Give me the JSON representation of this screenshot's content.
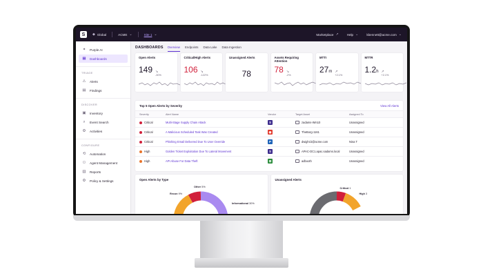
{
  "topbar": {
    "logo": "S",
    "scope": "Global",
    "account": "ACME",
    "site": "Site 1",
    "marketplace": "Marketplace",
    "help": "Help",
    "user": "kbennett@acme.com"
  },
  "sidebar": {
    "top_items": [
      {
        "label": "Purple AI",
        "icon": "sparkle-icon"
      },
      {
        "label": "Dashboards",
        "icon": "dashboard-icon",
        "active": true
      }
    ],
    "sections": [
      {
        "title": "TRIAGE",
        "items": [
          "Alerts",
          "Findings"
        ]
      },
      {
        "title": "DISCOVER",
        "items": [
          "Inventory",
          "Event Search",
          "Activities"
        ]
      },
      {
        "title": "CONFIGURE",
        "items": [
          "Automation",
          "Agent Management",
          "Reports",
          "Policy & Settings"
        ]
      }
    ]
  },
  "page": {
    "title": "DASHBOARDS",
    "tabs": [
      "Overview",
      "Endpoints",
      "Data Lake",
      "Data Ingestion"
    ],
    "active_tab": 0
  },
  "kpis": [
    {
      "label": "Open Alerts",
      "value": "149",
      "unit": "",
      "delta": "-30%",
      "arrow": "↘",
      "color": "normal"
    },
    {
      "label": "Critical/High Alerts",
      "value": "106",
      "unit": "",
      "delta": "-122%",
      "arrow": "↘",
      "color": "red"
    },
    {
      "label": "Unassigned Alerts",
      "value": "78",
      "unit": "",
      "delta": "",
      "arrow": "",
      "color": "normal"
    },
    {
      "label": "Assets Requiring Attention",
      "value": "78",
      "unit": "",
      "delta": "-2%",
      "arrow": "↘",
      "color": "red"
    },
    {
      "label": "MTTI",
      "value": "27",
      "unit": "m",
      "delta": "+2.1%",
      "arrow": "↗",
      "color": "normal"
    },
    {
      "label": "MTTR",
      "value": "1.2",
      "unit": "h",
      "delta": "+2.1%",
      "arrow": "↗",
      "color": "normal"
    }
  ],
  "alerts_table": {
    "title": "Top 5 Open Alerts by Severity",
    "view_all": "View All Alerts",
    "columns": [
      "Severity",
      "Alert Name",
      "Vendor",
      "Target Asset",
      "Assigned To"
    ],
    "rows": [
      {
        "severity": "Critical",
        "name": "Multi-Stage Supply Chain Attack",
        "vendor": "S",
        "vendor_color": "#3b2a8c",
        "asset": "zadams-Win10",
        "assigned": "Unassigned"
      },
      {
        "severity": "Critical",
        "name": "A Malicious Scheduled Task Was Created",
        "vendor": "◉",
        "vendor_color": "#e23b2e",
        "asset": "TheBorg-1161",
        "assigned": "Unassigned"
      },
      {
        "severity": "Critical",
        "name": "Phishing Email Delivered Due To User Override",
        "vendor": "P",
        "vendor_color": "#1e63b8",
        "asset": "dwight.b@acme.com",
        "assigned": "Nina T"
      },
      {
        "severity": "High",
        "name": "Golden Ticket Exploitation Due To Lateral Movement",
        "vendor": "S",
        "vendor_color": "#3b2a8c",
        "asset": "APAC-DC1.apac.sadams.local",
        "assigned": "Unassigned"
      },
      {
        "severity": "High",
        "name": "API Abuse For Data Theft",
        "vendor": "⊞",
        "vendor_color": "#2a8c3b",
        "asset": "adbooth",
        "assigned": "Unassigned"
      }
    ]
  },
  "bottom_cards": [
    {
      "title": "Open Alerts by Type",
      "labels": [
        {
          "name": "Other",
          "pct": "5%"
        },
        {
          "name": "Recon",
          "pct": "9%"
        },
        {
          "name": "Informational",
          "pct": "30%"
        }
      ]
    },
    {
      "title": "Unassigned Alerts",
      "labels": [
        {
          "name": "Critical",
          "pct": "1"
        },
        {
          "name": "High",
          "pct": "3"
        }
      ]
    }
  ],
  "colors": {
    "accent": "#5b2fd1",
    "critical": "#d11f3a",
    "high": "#e8742c",
    "topbar": "#1d1528"
  }
}
